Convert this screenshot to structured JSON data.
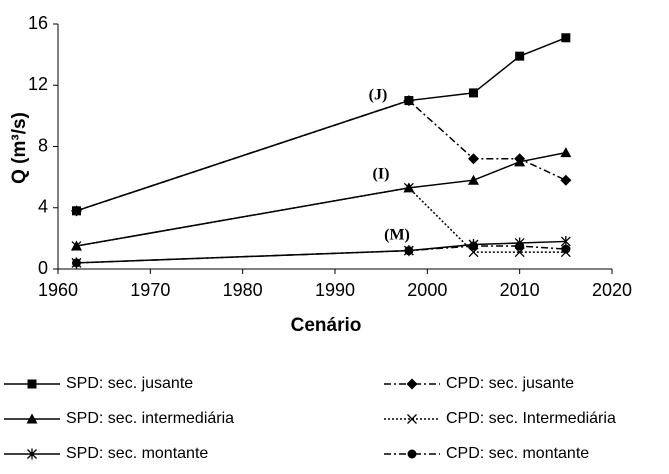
{
  "chart_data": {
    "type": "line",
    "xlabel": "Cenário",
    "ylabel": "Q (m³/s)",
    "x": [
      1962,
      1998,
      2005,
      2010,
      2015
    ],
    "xlim": [
      1960,
      2020
    ],
    "xticks": [
      1960,
      1970,
      1980,
      1990,
      2000,
      2010,
      2020
    ],
    "ylim": [
      0,
      16
    ],
    "yticks": [
      0,
      4,
      8,
      12,
      16
    ],
    "grid": false,
    "annotations": [
      "(J)",
      "(I)",
      "(M)"
    ],
    "series": [
      {
        "name": "SPD: sec. jusante",
        "color": "#000000",
        "marker": "square",
        "dash": "solid",
        "values": [
          3.8,
          11.0,
          11.5,
          13.9,
          15.1
        ]
      },
      {
        "name": "CPD: sec. jusante",
        "color": "#000000",
        "marker": "diamond",
        "dash": "dashdot",
        "values": [
          3.8,
          11.0,
          7.2,
          7.2,
          5.8
        ]
      },
      {
        "name": "SPD: sec. intermediária",
        "color": "#000000",
        "marker": "triangle",
        "dash": "solid",
        "values": [
          1.5,
          5.3,
          5.8,
          7.0,
          7.6
        ]
      },
      {
        "name": "CPD: sec. Intermediária",
        "color": "#000000",
        "marker": "x",
        "dash": "dotted",
        "values": [
          1.5,
          5.3,
          1.1,
          1.1,
          1.1
        ]
      },
      {
        "name": "SPD: sec. montante",
        "color": "#000000",
        "marker": "star",
        "dash": "solid",
        "values": [
          0.4,
          1.2,
          1.6,
          1.7,
          1.8
        ]
      },
      {
        "name": "CPD: sec. montante",
        "color": "#000000",
        "marker": "circle",
        "dash": "dashdot",
        "values": [
          0.4,
          1.2,
          1.5,
          1.5,
          1.3
        ]
      }
    ]
  }
}
